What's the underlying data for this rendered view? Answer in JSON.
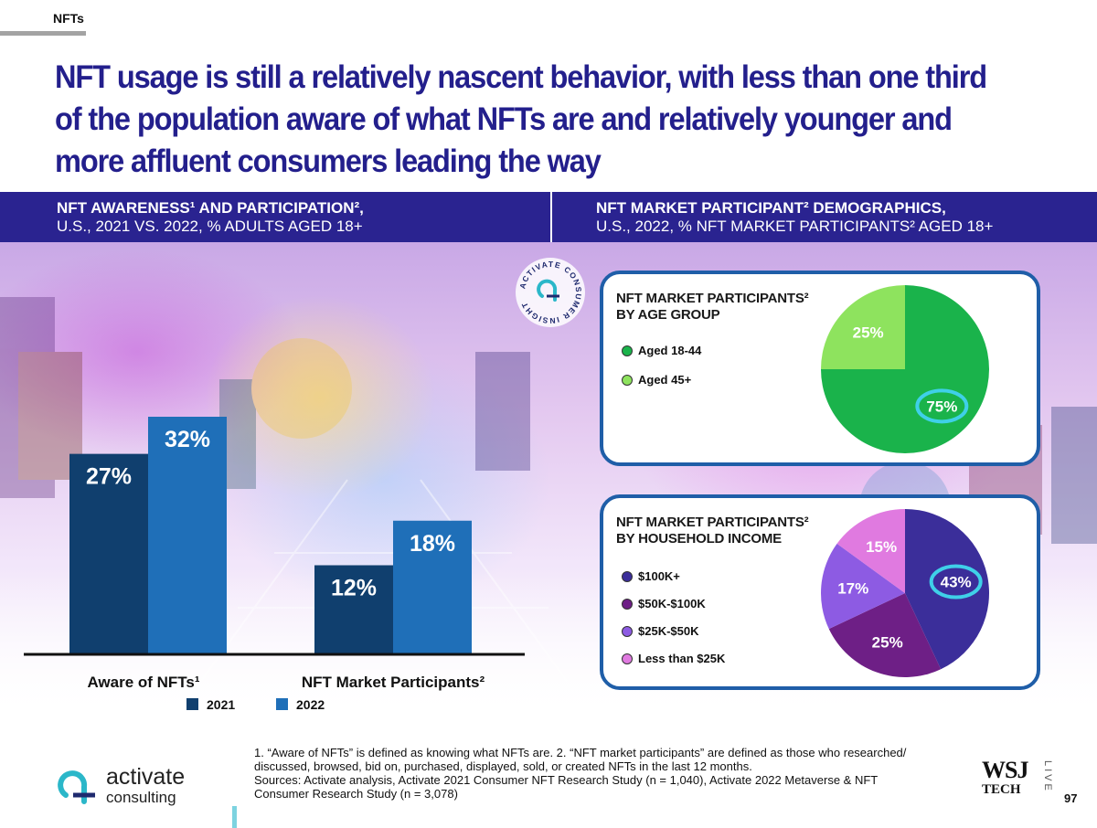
{
  "header": {
    "section_tag": "NFTs",
    "headline": "NFT usage is still a relatively nascent behavior, with less than one third of the population aware of what NFTs are and relatively younger and more affluent consumers leading the way"
  },
  "left_band": {
    "line1": "NFT AWARENESS¹ AND PARTICIPATION²,",
    "line2": "U.S., 2021 VS. 2022, % ADULTS AGED 18+"
  },
  "right_band": {
    "line1": "NFT MARKET PARTICIPANT² DEMOGRAPHICS,",
    "line2": "U.S., 2022, % NFT MARKET PARTICIPANTS² AGED 18+"
  },
  "badge": {
    "text": "ACTIVATE CONSUMER INSIGHT"
  },
  "chart_data": [
    {
      "type": "bar",
      "categories": [
        "Aware of NFTs¹",
        "NFT Market Participants²"
      ],
      "series": [
        {
          "name": "2021",
          "values": [
            27,
            12
          ],
          "labels": [
            "27%",
            "12%"
          ]
        },
        {
          "name": "2022",
          "values": [
            32,
            18
          ],
          "labels": [
            "32%",
            "18%"
          ]
        }
      ],
      "ylim": [
        0,
        40
      ],
      "colors": {
        "2021": "#103f6e",
        "2022": "#1f6fb8"
      },
      "legend_placement": "bottom"
    },
    {
      "type": "pie",
      "title_line1": "NFT MARKET PARTICIPANTS²",
      "title_line2": "BY AGE GROUP",
      "slices": [
        {
          "name": "Aged 18-44",
          "value": 75,
          "label": "75%",
          "color": "#1ab34b"
        },
        {
          "name": "Aged 45+",
          "value": 25,
          "label": "25%",
          "color": "#8ee35e"
        }
      ]
    },
    {
      "type": "pie",
      "title_line1": "NFT MARKET PARTICIPANTS²",
      "title_line2": "BY HOUSEHOLD INCOME",
      "slices": [
        {
          "name": "$100K+",
          "value": 43,
          "label": "43%",
          "color": "#3b2e9a"
        },
        {
          "name": "$50K-$100K",
          "value": 25,
          "label": "25%",
          "color": "#6e1f86"
        },
        {
          "name": "$25K-$50K",
          "value": 17,
          "label": "17%",
          "color": "#8d5be3"
        },
        {
          "name": "Less than $25K",
          "value": 15,
          "label": "15%",
          "color": "#e07ae0"
        }
      ]
    }
  ],
  "footnote": {
    "line1": "1. “Aware of NFTs” is defined as knowing what NFTs are.  2. “NFT market participants” are defined as those who researched/",
    "line2": "discussed, browsed, bid on, purchased, displayed, sold, or created NFTs in the last 12 months.",
    "line3": "Sources: Activate analysis, Activate 2021 Consumer NFT Research Study (n = 1,040), Activate 2022 Metaverse & NFT",
    "line4": "Consumer Research Study (n = 3,078)"
  },
  "logo": {
    "word": "activate",
    "sub": "consulting"
  },
  "wsj": {
    "mark": "WSJ",
    "tech": "TECH",
    "live": "LIVE"
  },
  "page_number": "97"
}
